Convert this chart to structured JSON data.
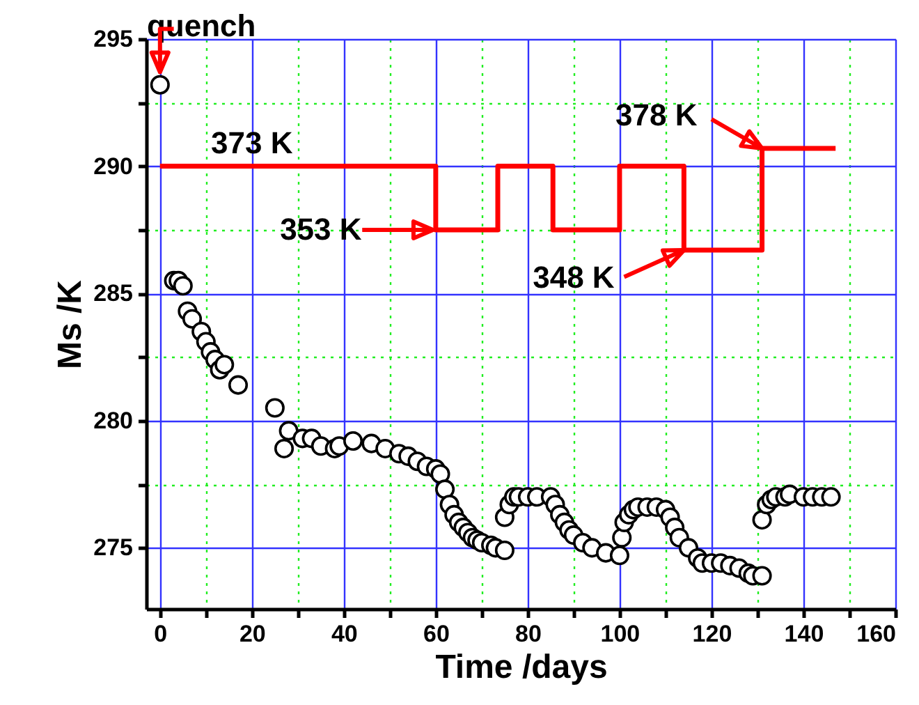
{
  "chart_data": {
    "type": "scatter",
    "xlabel": "Time /days",
    "ylabel": "Ms /K",
    "xlim": [
      -3,
      160
    ],
    "ylim": [
      272.6,
      295
    ],
    "xticks": [
      0,
      {
        "value": 10,
        "label": null
      },
      20,
      {
        "value": 30,
        "label": null
      },
      40,
      {
        "value": 50,
        "label": null
      },
      60,
      {
        "value": 70,
        "label": null
      },
      80,
      {
        "value": 90,
        "label": null
      },
      100,
      {
        "value": 110,
        "label": null
      },
      120,
      {
        "value": 130,
        "label": null
      },
      140,
      {
        "value": 150,
        "label": null
      },
      160
    ],
    "yticks": [
      275,
      {
        "value": 277.5,
        "label": null
      },
      280,
      {
        "value": 282.5,
        "label": null
      },
      285,
      {
        "value": 287.5,
        "label": null
      },
      290,
      {
        "value": 292.5,
        "label": null
      },
      295
    ],
    "grid": true,
    "series": [
      {
        "marker": "circle",
        "color": "#000000",
        "x": [
          0,
          3,
          4,
          5,
          6,
          7,
          9,
          10,
          11,
          12,
          13,
          14,
          17,
          25,
          27,
          28,
          31,
          33,
          35,
          38,
          39,
          42,
          46,
          49,
          52,
          54,
          56,
          58,
          60,
          61,
          62,
          63,
          64,
          65,
          66,
          67,
          68,
          69,
          70,
          72,
          73,
          75,
          75,
          76,
          77,
          78,
          80,
          82,
          85,
          86,
          87,
          88,
          89,
          90,
          92,
          94,
          97,
          100,
          100.5,
          101,
          102,
          103,
          104,
          106,
          108,
          110,
          111,
          112,
          113,
          115,
          117,
          118,
          120,
          122,
          124,
          126,
          128,
          129,
          131,
          131,
          132,
          133,
          134,
          136,
          137,
          140,
          142,
          144,
          146
        ],
        "values": [
          293.2,
          285.5,
          285.5,
          285.3,
          284.3,
          284.0,
          283.5,
          283.1,
          282.7,
          282.4,
          282.0,
          282.2,
          281.4,
          280.5,
          278.9,
          279.6,
          279.3,
          279.3,
          279.0,
          278.9,
          279.0,
          279.2,
          279.1,
          278.9,
          278.7,
          278.6,
          278.4,
          278.2,
          278.1,
          277.9,
          277.3,
          276.7,
          276.3,
          276.0,
          275.8,
          275.6,
          275.4,
          275.3,
          275.2,
          275.1,
          275.0,
          274.9,
          276.2,
          276.7,
          277.0,
          277.0,
          277.0,
          277.0,
          277.0,
          276.7,
          276.3,
          276.0,
          275.7,
          275.5,
          275.2,
          275.0,
          274.8,
          274.7,
          275.4,
          276.0,
          276.3,
          276.5,
          276.6,
          276.6,
          276.6,
          276.5,
          276.2,
          275.8,
          275.4,
          275.0,
          274.6,
          274.4,
          274.4,
          274.4,
          274.3,
          274.2,
          274.0,
          273.9,
          273.9,
          276.1,
          276.7,
          276.9,
          277.0,
          277.0,
          277.1,
          277.0,
          277.0,
          277.0,
          277.0
        ]
      },
      {
        "type": "step",
        "line_style": "solid",
        "color": "#ff0000",
        "x": [
          0,
          60,
          73.5,
          85.5,
          100,
          114,
          131,
          147
        ],
        "values": [
          290,
          287.5,
          290,
          287.5,
          290,
          286.7,
          290.7,
          290.7
        ]
      }
    ],
    "annotations": [
      {
        "text": "quench",
        "x": 0,
        "y": 293.2
      },
      {
        "text": "373 K",
        "x": 20,
        "y": 290
      },
      {
        "text": "353 K",
        "x": 60,
        "y": 287.5
      },
      {
        "text": "348 K",
        "x": 114,
        "y": 286.7
      },
      {
        "text": "378 K",
        "x": 131,
        "y": 290.7
      }
    ]
  }
}
